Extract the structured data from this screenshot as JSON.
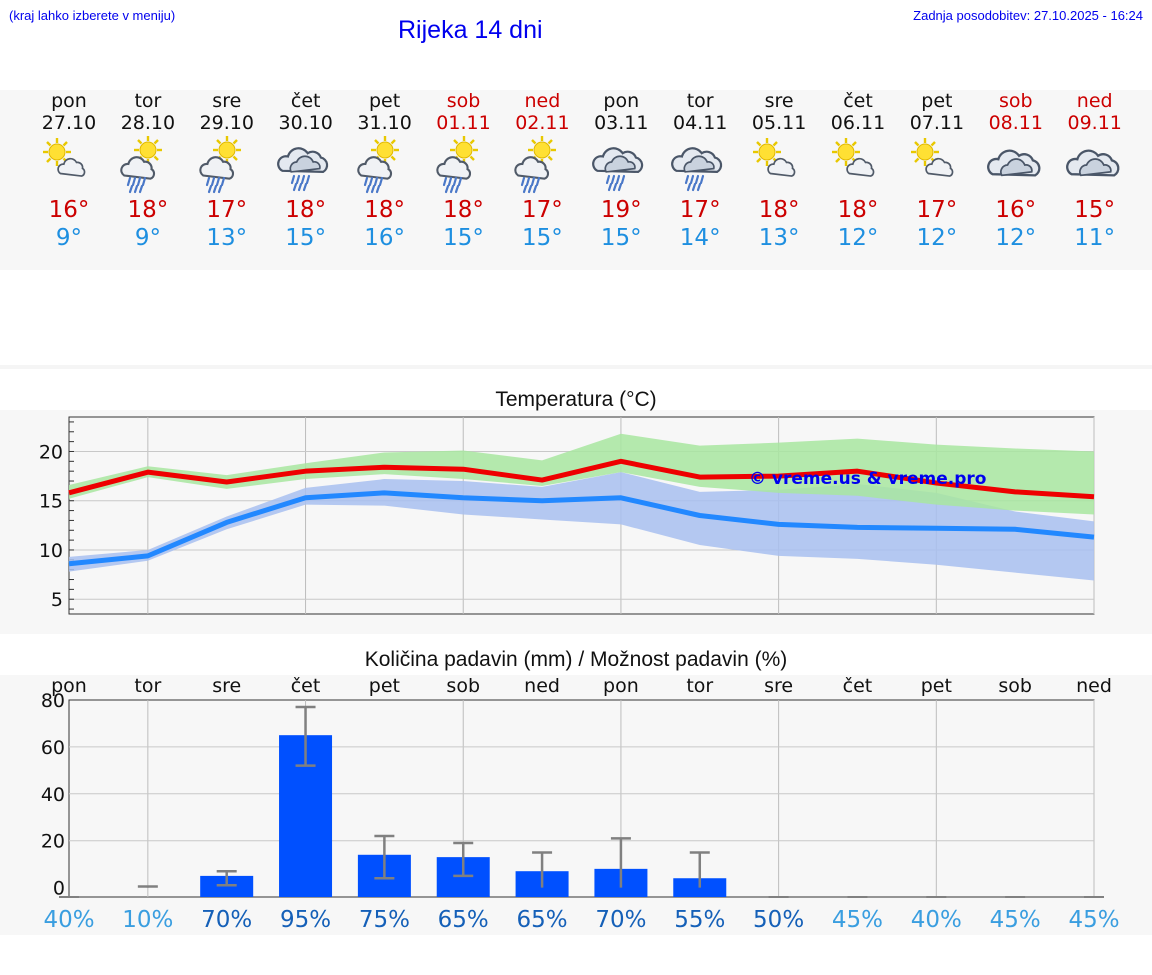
{
  "header": {
    "location_hint": "(kraj lahko izberete v meniju)",
    "title": "Rijeka 14 dni",
    "last_update": "Zadnja posodobitev: 27.10.2025 - 16:24"
  },
  "colors": {
    "weekday": "#111111",
    "weekend": "#cc0000",
    "max_temp": "#cc0000",
    "min_temp": "#1e8fe0",
    "max_line": "#ee0000",
    "min_line": "#2288ff",
    "max_band": "#a8e6a0",
    "min_band": "#a8bff0",
    "overlap_band": "#7cc4a0",
    "bars": "#0050ff",
    "whiskers": "#808080",
    "watermark": "#0000ee"
  },
  "days": [
    {
      "name": "pon",
      "date": "27.10",
      "icon": "sun-cloud-icon",
      "max": "16°",
      "min": "9°",
      "weekend": false
    },
    {
      "name": "tor",
      "date": "28.10",
      "icon": "sun-cloud-rain-icon",
      "max": "18°",
      "min": "9°",
      "weekend": false
    },
    {
      "name": "sre",
      "date": "29.10",
      "icon": "sun-cloud-rain-icon",
      "max": "17°",
      "min": "13°",
      "weekend": false
    },
    {
      "name": "čet",
      "date": "30.10",
      "icon": "cloud-rain-icon",
      "max": "18°",
      "min": "15°",
      "weekend": false
    },
    {
      "name": "pet",
      "date": "31.10",
      "icon": "sun-cloud-rain-icon",
      "max": "18°",
      "min": "16°",
      "weekend": false
    },
    {
      "name": "sob",
      "date": "01.11",
      "icon": "sun-cloud-rain-icon",
      "max": "18°",
      "min": "15°",
      "weekend": true
    },
    {
      "name": "ned",
      "date": "02.11",
      "icon": "sun-cloud-rain-icon",
      "max": "17°",
      "min": "15°",
      "weekend": true
    },
    {
      "name": "pon",
      "date": "03.11",
      "icon": "cloud-rain-icon",
      "max": "19°",
      "min": "15°",
      "weekend": false
    },
    {
      "name": "tor",
      "date": "04.11",
      "icon": "cloud-rain-icon",
      "max": "17°",
      "min": "14°",
      "weekend": false
    },
    {
      "name": "sre",
      "date": "05.11",
      "icon": "sun-cloud-icon",
      "max": "18°",
      "min": "13°",
      "weekend": false
    },
    {
      "name": "čet",
      "date": "06.11",
      "icon": "sun-cloud-icon",
      "max": "18°",
      "min": "12°",
      "weekend": false
    },
    {
      "name": "pet",
      "date": "07.11",
      "icon": "sun-cloud-icon",
      "max": "17°",
      "min": "12°",
      "weekend": false
    },
    {
      "name": "sob",
      "date": "08.11",
      "icon": "cloud-icon",
      "max": "16°",
      "min": "12°",
      "weekend": true
    },
    {
      "name": "ned",
      "date": "09.11",
      "icon": "cloud-icon",
      "max": "15°",
      "min": "11°",
      "weekend": true
    }
  ],
  "chart_data": [
    {
      "type": "line",
      "title": "Temperatura (°C)",
      "xlabel": "",
      "ylabel": "",
      "ylim": [
        3.5,
        23.5
      ],
      "yticks": [
        5,
        10,
        15,
        20
      ],
      "grid": true,
      "watermark": "© vreme.us & vreme.pro",
      "x": [
        0,
        1,
        2,
        3,
        4,
        5,
        6,
        7,
        8,
        9,
        10,
        11,
        12,
        13
      ],
      "series": [
        {
          "name": "max",
          "values": [
            15.8,
            17.9,
            16.9,
            18.0,
            18.4,
            18.2,
            17.1,
            19.0,
            17.4,
            17.5,
            18.0,
            16.8,
            15.9,
            15.4
          ],
          "band_low": [
            15.2,
            17.4,
            16.2,
            17.2,
            17.7,
            17.2,
            16.5,
            17.9,
            16.4,
            15.8,
            15.5,
            14.6,
            14.0,
            13.6
          ],
          "band_high": [
            16.6,
            18.5,
            17.6,
            18.8,
            19.9,
            20.1,
            19.1,
            21.8,
            20.6,
            20.9,
            21.3,
            20.7,
            20.3,
            20.0
          ]
        },
        {
          "name": "min",
          "values": [
            8.6,
            9.4,
            12.8,
            15.3,
            15.8,
            15.3,
            15.0,
            15.3,
            13.5,
            12.6,
            12.3,
            12.2,
            12.1,
            11.3
          ],
          "band_low": [
            7.8,
            8.9,
            12.1,
            14.6,
            14.5,
            13.6,
            13.1,
            12.6,
            10.5,
            9.4,
            9.1,
            8.5,
            7.7,
            6.9
          ],
          "band_high": [
            9.3,
            10.0,
            13.4,
            16.3,
            17.2,
            17.0,
            16.4,
            17.9,
            15.9,
            16.1,
            16.7,
            15.8,
            13.9,
            12.9
          ]
        }
      ]
    },
    {
      "type": "bar",
      "title": "Količina padavin (mm) / Možnost padavin (%)",
      "categories": [
        "pon",
        "tor",
        "sre",
        "čet",
        "pet",
        "sob",
        "ned",
        "pon",
        "tor",
        "sre",
        "čet",
        "pet",
        "sob",
        "ned"
      ],
      "values": [
        0,
        0,
        5,
        65,
        14,
        13,
        7,
        8,
        4,
        0,
        0,
        0,
        0,
        0
      ],
      "error_low": [
        0,
        0,
        1,
        52,
        4,
        5,
        0,
        0,
        0,
        0,
        0,
        0,
        0,
        0
      ],
      "error_high": [
        0,
        0.5,
        7,
        77,
        22,
        19,
        15,
        21,
        15,
        0,
        0,
        0,
        0,
        0
      ],
      "probability": [
        "40%",
        "10%",
        "70%",
        "95%",
        "75%",
        "65%",
        "65%",
        "70%",
        "55%",
        "50%",
        "45%",
        "40%",
        "45%",
        "45%"
      ],
      "ylim": [
        -4,
        80
      ],
      "yticks": [
        0,
        20,
        40,
        60,
        80
      ],
      "xlabel": "",
      "ylabel": "",
      "grid": true
    }
  ]
}
